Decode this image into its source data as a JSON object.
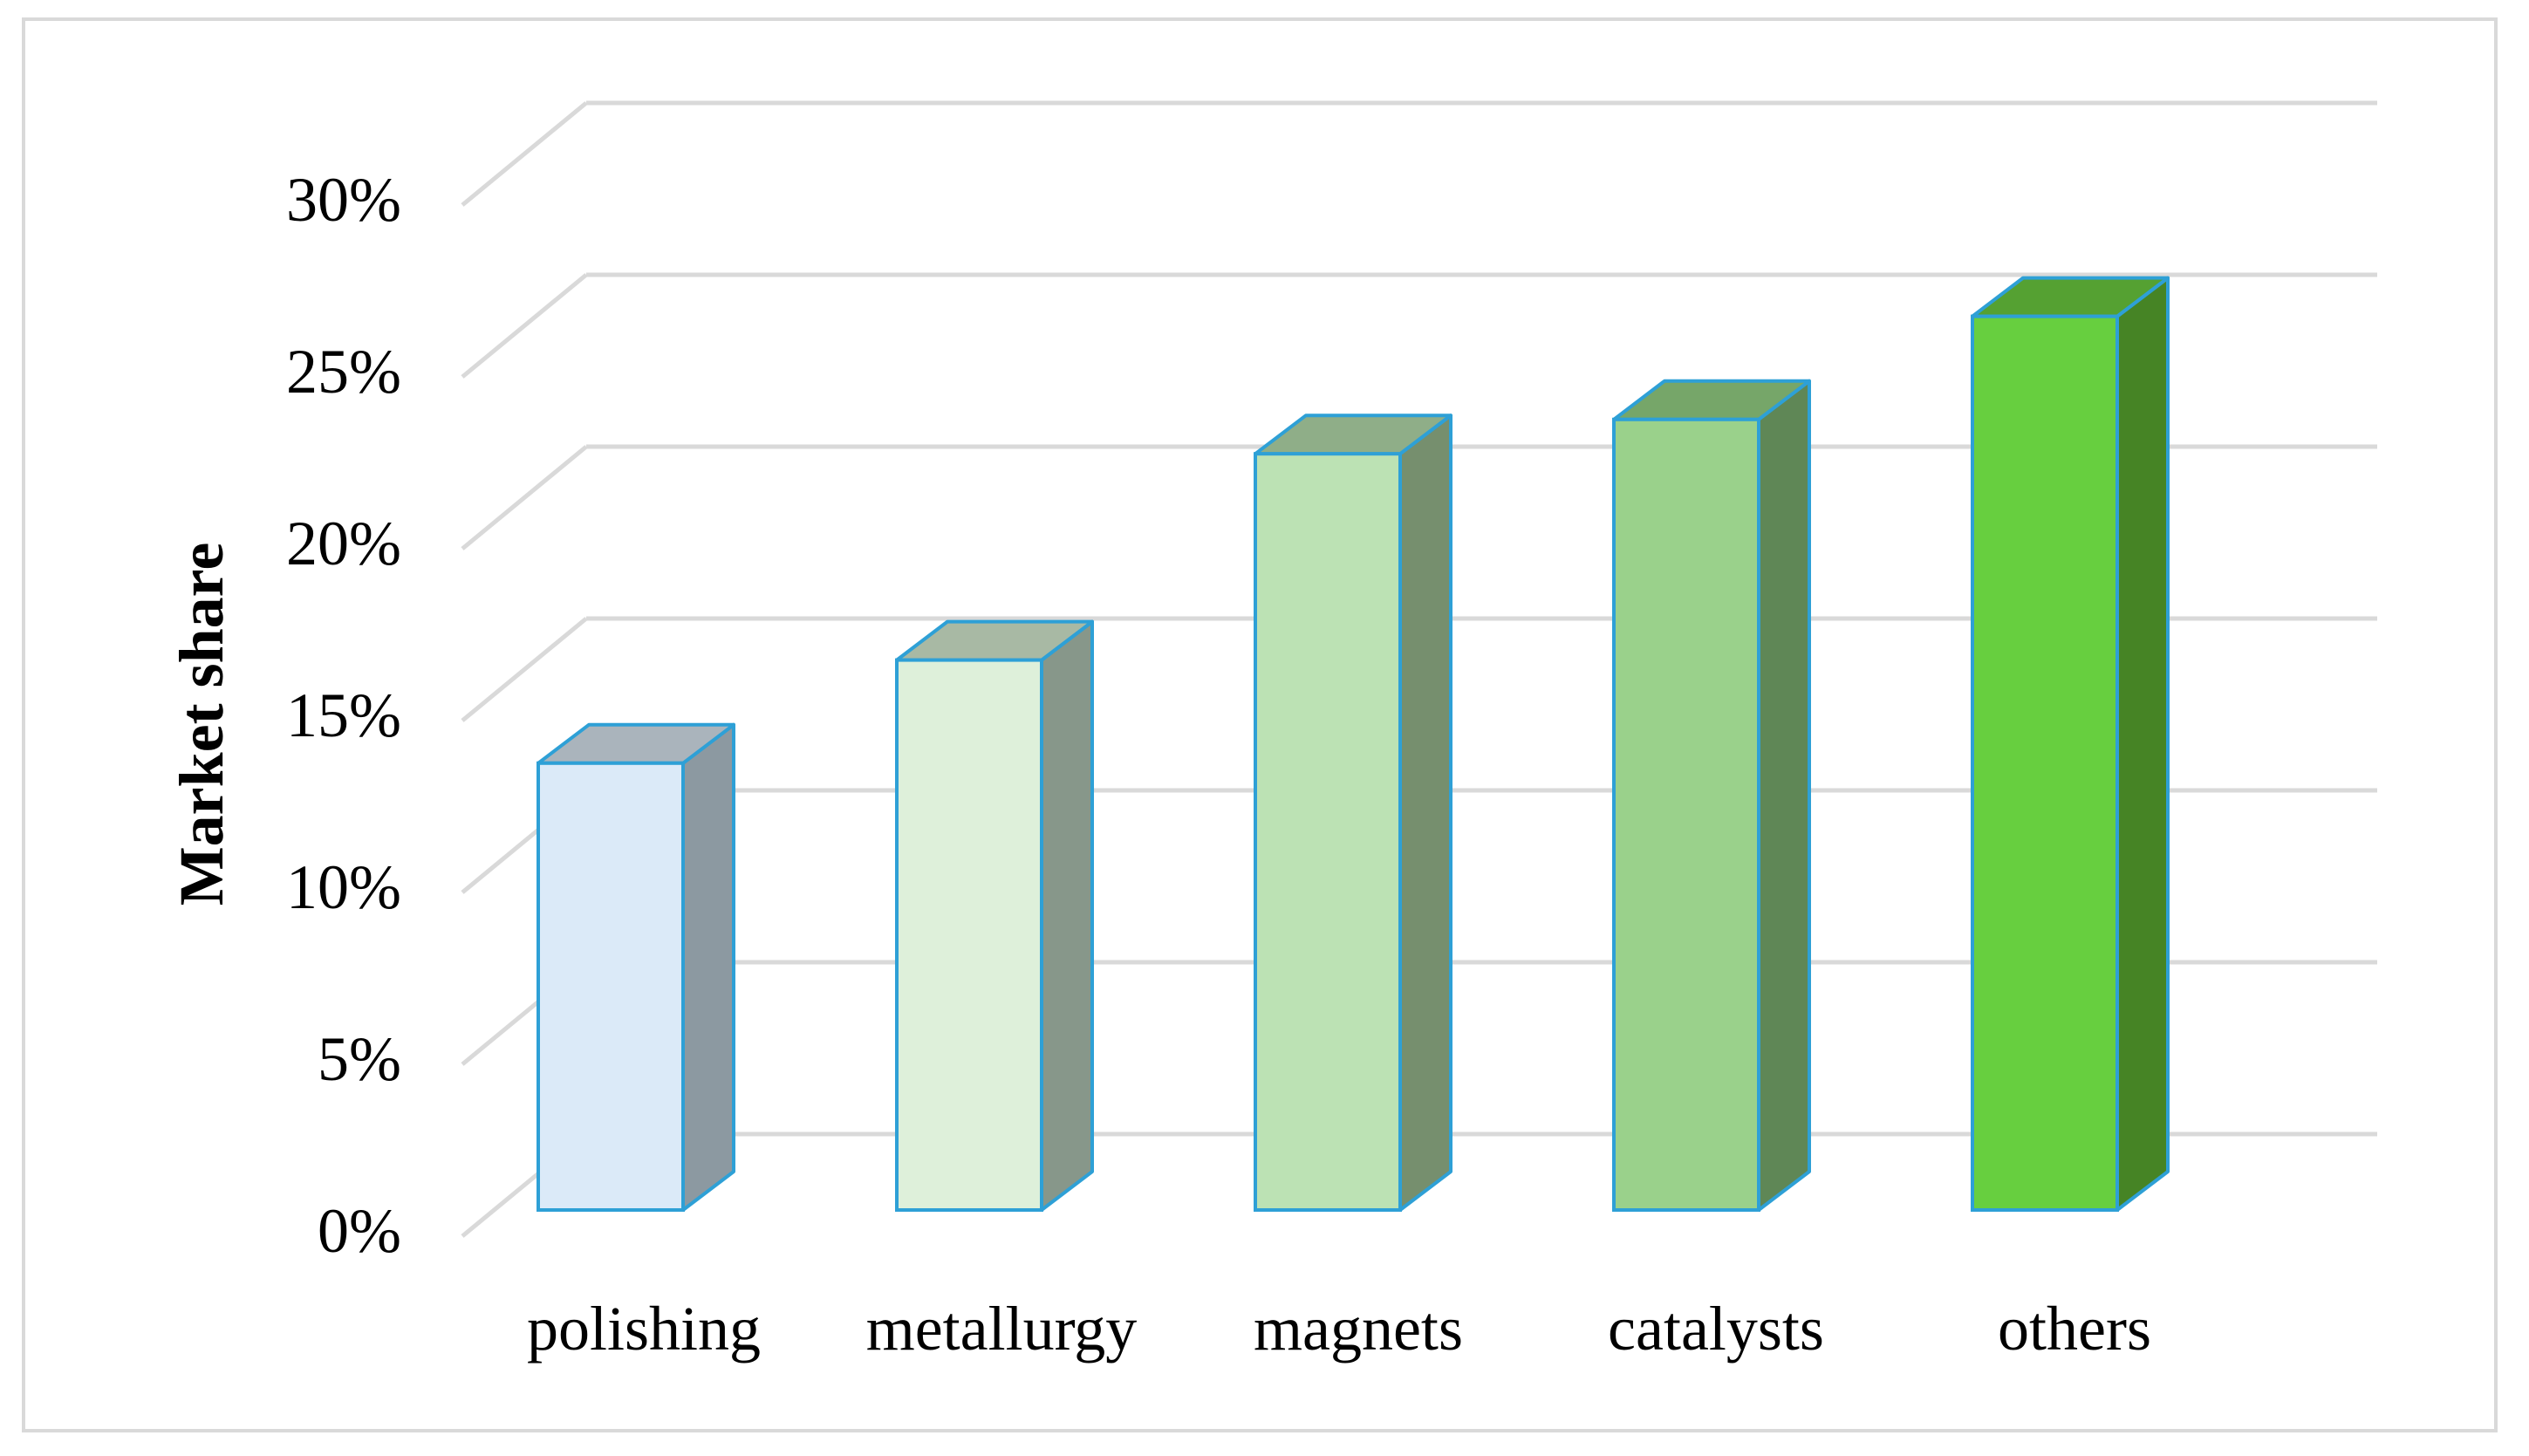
{
  "chart_data": {
    "type": "bar",
    "style": "3d-column",
    "categories": [
      "polishing",
      "metallurgy",
      "magnets",
      "catalysts",
      "others"
    ],
    "values": [
      13,
      16,
      22,
      23,
      26
    ],
    "value_unit": "%",
    "ylabel": "Market share",
    "xlabel": "",
    "title": "",
    "ylim": [
      0,
      30
    ],
    "yticks": [
      0,
      5,
      10,
      15,
      20,
      25,
      30
    ],
    "ytick_labels": [
      "0%",
      "5%",
      "10%",
      "15%",
      "20%",
      "25%",
      "30%"
    ],
    "grid": true,
    "legend": "none",
    "bar_colors": [
      {
        "front": "#dbeaf8",
        "top": "#aab4bc",
        "side": "#8c99a1"
      },
      {
        "front": "#def0da",
        "top": "#a8b9a4",
        "side": "#87978a"
      },
      {
        "front": "#bce2b4",
        "top": "#8fae88",
        "side": "#768f6e"
      },
      {
        "front": "#9ad18b",
        "top": "#76a669",
        "side": "#5f8756"
      },
      {
        "front": "#67cf3f",
        "top": "#55a132",
        "side": "#468425"
      }
    ],
    "bar_outline_color": "#2ea0d6",
    "grid_color": "#d9d9d9"
  }
}
